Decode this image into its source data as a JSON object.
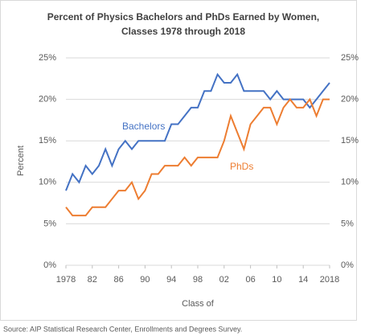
{
  "chart_data": {
    "type": "line",
    "title": "Percent of Physics Bachelors and PhDs Earned by Women,",
    "subtitle": "Classes 1978 through 2018",
    "y_label": "Percent",
    "x_label": "Class of",
    "source": "Source: AIP Statistical Research Center, Enrollments and Degrees Survey.",
    "x": [
      1978,
      1979,
      1980,
      1981,
      1982,
      1983,
      1984,
      1985,
      1986,
      1987,
      1988,
      1989,
      1990,
      1991,
      1992,
      1993,
      1994,
      1995,
      1996,
      1997,
      1998,
      1999,
      2000,
      2001,
      2002,
      2003,
      2004,
      2005,
      2006,
      2007,
      2008,
      2009,
      2010,
      2011,
      2012,
      2013,
      2014,
      2015,
      2016,
      2017,
      2018
    ],
    "series": [
      {
        "name": "Bachelors",
        "color": "#4472c4",
        "values": [
          9,
          11,
          10,
          12,
          11,
          12,
          14,
          12,
          14,
          15,
          14,
          15,
          15,
          15,
          15,
          15,
          17,
          17,
          18,
          19,
          19,
          21,
          21,
          23,
          22,
          22,
          23,
          21,
          21,
          21,
          21,
          20,
          21,
          20,
          20,
          20,
          20,
          19,
          20,
          21,
          22
        ]
      },
      {
        "name": "PhDs",
        "color": "#ed7d31",
        "values": [
          7,
          6,
          6,
          6,
          7,
          7,
          7,
          8,
          9,
          9,
          10,
          8,
          9,
          11,
          11,
          12,
          12,
          12,
          13,
          12,
          13,
          13,
          13,
          13,
          15,
          18,
          16,
          14,
          17,
          18,
          19,
          19,
          17,
          19,
          20,
          19,
          19,
          20,
          18,
          20,
          20
        ]
      }
    ],
    "xlim": [
      1978,
      2018
    ],
    "xticks": [
      1978,
      {
        "value": 1982,
        "label": "82"
      },
      {
        "value": 1986,
        "label": "86"
      },
      {
        "value": 1990,
        "label": "90"
      },
      {
        "value": 1994,
        "label": "94"
      },
      {
        "value": 1998,
        "label": "98"
      },
      {
        "value": 2002,
        "label": "02"
      },
      {
        "value": 2006,
        "label": "06"
      },
      {
        "value": 2010,
        "label": "10"
      },
      {
        "value": 2014,
        "label": "14"
      },
      2018
    ],
    "ylim": [
      0,
      25
    ],
    "yticks": [
      {
        "value": 0,
        "label": "0%"
      },
      {
        "value": 5,
        "label": "5%"
      },
      {
        "value": 10,
        "label": "10%"
      },
      {
        "value": 15,
        "label": "15%"
      },
      {
        "value": 20,
        "label": "20%"
      },
      {
        "value": 25,
        "label": "25%"
      }
    ],
    "y2lim": [
      0,
      25
    ],
    "y2ticks": [
      {
        "value": 0,
        "label": "0%"
      },
      {
        "value": 5,
        "label": "5%"
      },
      {
        "value": 10,
        "label": "10%"
      },
      {
        "value": 15,
        "label": "15%"
      },
      {
        "value": 20,
        "label": "20%"
      },
      {
        "value": 25,
        "label": "25%"
      }
    ],
    "grid": true
  }
}
